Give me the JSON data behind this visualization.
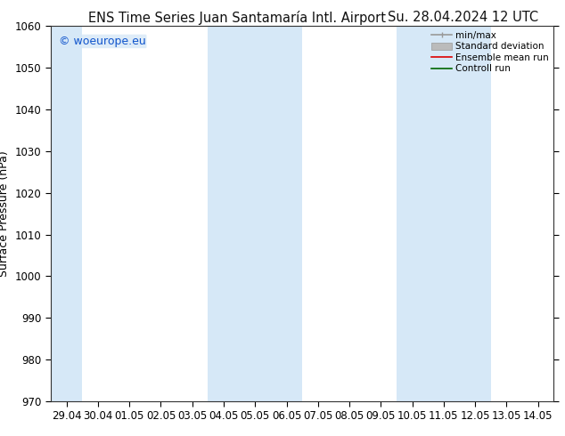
{
  "title_left": "ENS Time Series Juan Santamaría Intl. Airport",
  "title_right": "Su. 28.04.2024 12 UTC",
  "ylabel": "Surface Pressure (hPa)",
  "ylim": [
    970,
    1060
  ],
  "yticks": [
    970,
    980,
    990,
    1000,
    1010,
    1020,
    1030,
    1040,
    1050,
    1060
  ],
  "x_labels": [
    "29.04",
    "30.04",
    "01.05",
    "02.05",
    "03.05",
    "04.05",
    "05.05",
    "06.05",
    "07.05",
    "08.05",
    "09.05",
    "10.05",
    "11.05",
    "12.05",
    "13.05",
    "14.05"
  ],
  "shaded_indices": [
    0,
    5,
    6,
    7,
    11,
    12,
    13
  ],
  "watermark": "© woeurope.eu",
  "bg_color": "#ffffff",
  "shade_color": "#d6e8f7",
  "legend_items": [
    {
      "label": "min/max",
      "color": "#999999",
      "lw": 1.2
    },
    {
      "label": "Standard deviation",
      "color": "#bbbbbb",
      "lw": 7
    },
    {
      "label": "Ensemble mean run",
      "color": "#dd0000",
      "lw": 1.2
    },
    {
      "label": "Controll run",
      "color": "#006600",
      "lw": 1.2
    }
  ],
  "title_fontsize": 10.5,
  "label_fontsize": 9,
  "tick_fontsize": 8.5,
  "watermark_fontsize": 9
}
